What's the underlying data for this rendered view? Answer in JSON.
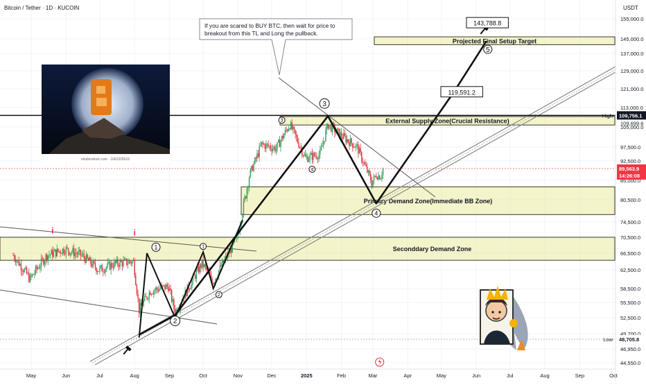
{
  "header": {
    "title": "Bitcoin / Tether · 1D · KUCOIN"
  },
  "axis": {
    "currency": "USDT",
    "ylim": [
      44550,
      159000
    ],
    "ticks": [
      "155,000.0",
      "145,000.0",
      "137,000.0",
      "129,000.0",
      "121,000.0",
      "113,000.0",
      "105,000.0",
      "97,500.0",
      "92,500.0",
      "85,000.0",
      "80,500.0",
      "74,500.0",
      "70,500.0",
      "66,500.0",
      "62,500.0",
      "58,500.0",
      "55,500.0",
      "52,500.0",
      "49,700.0",
      "46,950.0",
      "44,550.0"
    ],
    "xlabels": [
      "May",
      "Jun",
      "Jul",
      "Aug",
      "Sep",
      "Oct",
      "Nov",
      "Dec",
      "2025",
      "Feb",
      "Mar",
      "Apr",
      "May",
      "Jun",
      "Jul",
      "Aug",
      "Sep",
      "Oct"
    ]
  },
  "markers": {
    "high_label": "High",
    "high_value": "109,756.1",
    "high_price_2": "109,699.6",
    "low_label": "Low",
    "low_value": "48,705.8",
    "last_price": "89,563.9",
    "countdown": "14:26:08"
  },
  "zones": [
    {
      "label": "Projected Final Setup Target",
      "low": 141800,
      "high": 146000
    },
    {
      "label": "External Supply Zone(Crucial Resistance)",
      "low": 105800,
      "high": 109300
    },
    {
      "label": "Primary Demand Zone(Immediate BB Zone)",
      "low": 76500,
      "high": 83500
    },
    {
      "label": "Seconddary Demand Zone",
      "low": 64800,
      "high": 70500
    }
  ],
  "callouts": {
    "note": [
      "If you are scared to BUY BTC, then wait for price to",
      "breakout from this TL and Long the pullback."
    ],
    "target_1": "119,591.2",
    "target_2": "143,788.8"
  },
  "waves": {
    "main": [
      {
        "label": "2",
        "date": "2024-08-05",
        "price": 49500
      },
      {
        "label": "",
        "date": "2024-09-06",
        "price": 53000
      },
      {
        "label": "3",
        "date": "2025-01-20",
        "price": 109500
      },
      {
        "label": "4",
        "date": "2025-03-04",
        "price": 79500
      },
      {
        "label": "",
        "date": "2025-05-12",
        "price": 119591.2
      },
      {
        "label": "5",
        "date": "2025-06-10",
        "price": 143788.8
      }
    ],
    "sub_labels": [
      "1",
      "2",
      "3",
      "4",
      "5",
      "i"
    ]
  },
  "chart_data": {
    "type": "candlestick",
    "title": "Bitcoin / Tether · 1D · KUCOIN",
    "ylabel": "USDT",
    "ylim": [
      44550,
      159000
    ],
    "x_range": [
      "2024-04-10",
      "2025-10-15"
    ],
    "series": [
      {
        "name": "",
        "approx_closes": [
          [
            "2024-04-15",
            66000
          ],
          [
            "2024-04-30",
            60500
          ],
          [
            "2024-05-15",
            66000
          ],
          [
            "2024-05-31",
            67500
          ],
          [
            "2024-06-15",
            66000
          ],
          [
            "2024-06-30",
            62500
          ],
          [
            "2024-07-15",
            64000
          ],
          [
            "2024-07-31",
            64500
          ],
          [
            "2024-08-05",
            54000
          ],
          [
            "2024-08-15",
            58000
          ],
          [
            "2024-08-31",
            59000
          ],
          [
            "2024-09-06",
            53500
          ],
          [
            "2024-09-30",
            64000
          ],
          [
            "2024-10-10",
            60000
          ],
          [
            "2024-10-31",
            70000
          ],
          [
            "2024-11-12",
            88000
          ],
          [
            "2024-11-22",
            98500
          ],
          [
            "2024-12-05",
            97000
          ],
          [
            "2024-12-17",
            106000
          ],
          [
            "2024-12-31",
            93500
          ],
          [
            "2025-01-13",
            95000
          ],
          [
            "2025-01-20",
            106000
          ],
          [
            "2025-01-31",
            102000
          ],
          [
            "2025-02-15",
            97500
          ],
          [
            "2025-02-28",
            84500
          ],
          [
            "2025-03-04",
            87000
          ],
          [
            "2025-03-08",
            86500
          ],
          [
            "2025-03-10",
            89563.9
          ]
        ]
      }
    ],
    "annotations": {
      "high": 109756.1,
      "low": 48705.8,
      "last": 89563.9,
      "targets": [
        119591.2,
        143788.8
      ]
    }
  }
}
